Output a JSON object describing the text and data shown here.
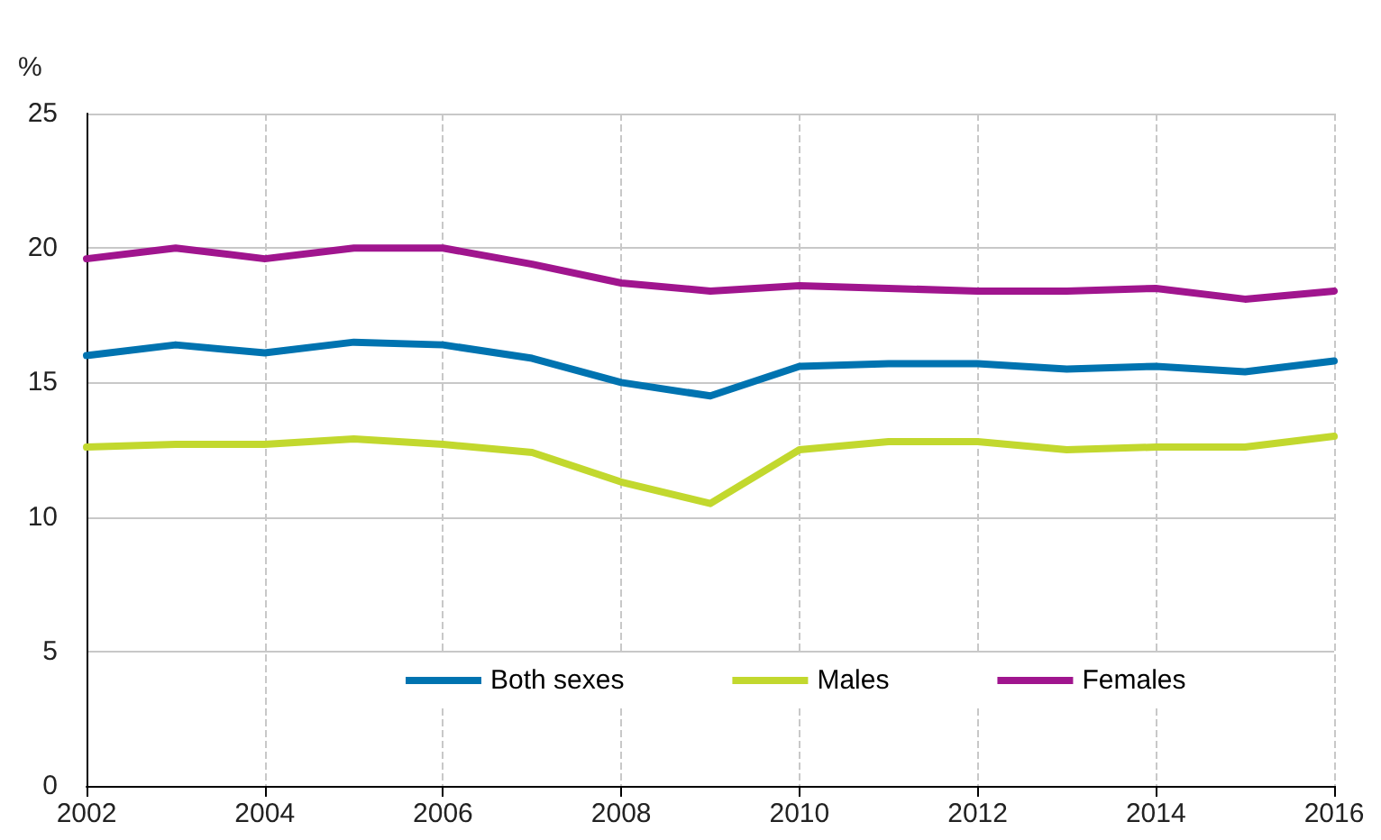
{
  "chart_data": {
    "type": "line",
    "ylabel": "%",
    "x": [
      2002,
      2003,
      2004,
      2005,
      2006,
      2007,
      2008,
      2009,
      2010,
      2011,
      2012,
      2013,
      2014,
      2015,
      2016
    ],
    "series": [
      {
        "name": "Both sexes",
        "color": "#0073b0",
        "values": [
          16.0,
          16.4,
          16.1,
          16.5,
          16.4,
          15.9,
          15.0,
          14.5,
          15.6,
          15.7,
          15.7,
          15.5,
          15.6,
          15.4,
          15.8
        ]
      },
      {
        "name": "Males",
        "color": "#c2d82e",
        "values": [
          12.6,
          12.7,
          12.7,
          12.9,
          12.7,
          12.4,
          11.3,
          10.5,
          12.5,
          12.8,
          12.8,
          12.5,
          12.6,
          12.6,
          13.0
        ]
      },
      {
        "name": "Females",
        "color": "#a0158e",
        "values": [
          19.6,
          20.0,
          19.6,
          20.0,
          20.0,
          19.4,
          18.7,
          18.4,
          18.6,
          18.5,
          18.4,
          18.4,
          18.5,
          18.1,
          18.4
        ]
      }
    ],
    "xlim": [
      2002,
      2016
    ],
    "xticks": [
      2002,
      2004,
      2006,
      2008,
      2010,
      2012,
      2014,
      2016
    ],
    "ylim": [
      0,
      25
    ],
    "yticks": [
      0,
      5,
      10,
      15,
      20,
      25
    ],
    "grid": true,
    "legend": "bottom",
    "marker": "none",
    "line_style": "solid"
  }
}
